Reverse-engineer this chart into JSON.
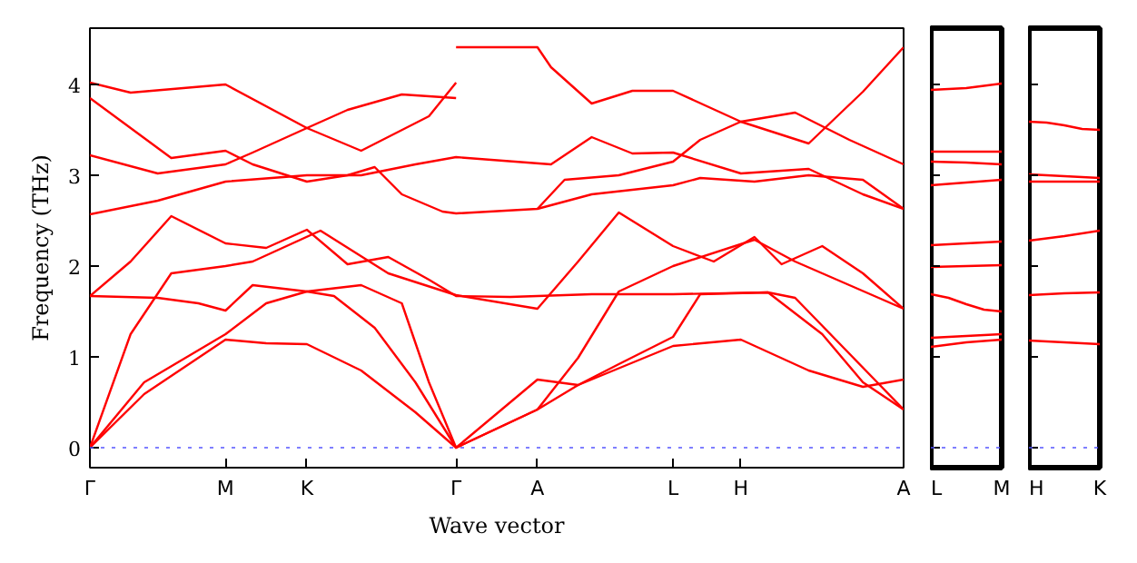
{
  "chart_data": [
    {
      "type": "line",
      "ylabel": "Frequency (THz)",
      "xlabel": "Wave vector",
      "ylim": [
        -0.22,
        4.62
      ],
      "yticks": [
        0,
        1,
        2,
        3,
        4
      ],
      "categories": [
        "Γ",
        null,
        null,
        null,
        null,
        null,
        null,
        null,
        null,
        null,
        "M",
        null,
        null,
        null,
        null,
        null,
        "K",
        null,
        null,
        null,
        null,
        null,
        null,
        null,
        null,
        null,
        null,
        "Γ",
        null,
        null,
        null,
        null,
        null,
        "A",
        null,
        null,
        null,
        null,
        null,
        null,
        null,
        null,
        null,
        "L",
        null,
        null,
        null,
        null,
        "H",
        null,
        null,
        null,
        null,
        null,
        null,
        null,
        null,
        null,
        null,
        null,
        "A"
      ],
      "ref_lines": [
        {
          "axis": "y",
          "value": 0,
          "color": "#5555ff",
          "line_style": "dotted"
        }
      ],
      "series": [
        {
          "color": "#ff0000",
          "values": [
            4.02,
            null,
            null,
            3.91,
            null,
            null,
            null,
            null,
            null,
            null,
            4.0,
            null,
            null,
            null,
            null,
            null,
            3.52,
            null,
            null,
            null,
            3.27,
            null,
            null,
            null,
            null,
            3.65,
            null,
            4.02,
            null,
            null,
            null,
            null,
            null,
            null,
            null,
            null,
            null,
            null,
            null,
            null,
            null,
            null,
            null,
            null,
            null,
            null,
            null,
            null,
            null,
            null,
            null,
            null,
            null,
            null,
            null,
            null,
            null,
            null,
            null,
            null,
            null
          ]
        },
        {
          "color": "#ff0000",
          "values": [
            3.22,
            null,
            null,
            null,
            null,
            3.02,
            null,
            null,
            null,
            null,
            3.12,
            null,
            3.25,
            null,
            null,
            null,
            3.52,
            null,
            null,
            3.72,
            null,
            null,
            null,
            3.89,
            null,
            null,
            null,
            3.85,
            null,
            null,
            null,
            null,
            null,
            null,
            null,
            null,
            null,
            null,
            null,
            null,
            null,
            null,
            null,
            null,
            null,
            null,
            null,
            null,
            null,
            null,
            null,
            null,
            null,
            null,
            null,
            null,
            null,
            null,
            null,
            null,
            null
          ]
        },
        {
          "color": "#ff0000",
          "values": [
            3.85,
            null,
            null,
            null,
            null,
            null,
            3.19,
            null,
            null,
            null,
            3.27,
            null,
            3.12,
            null,
            null,
            null,
            2.93,
            null,
            null,
            3.0,
            null,
            3.09,
            null,
            2.79,
            null,
            null,
            2.6,
            2.58,
            null,
            null,
            null,
            null,
            null,
            2.63,
            null,
            null,
            null,
            2.79,
            null,
            null,
            null,
            null,
            null,
            2.89,
            null,
            2.97,
            null,
            null,
            null,
            2.93,
            null,
            null,
            null,
            3.0,
            null,
            null,
            null,
            2.95,
            null,
            null,
            2.63
          ]
        },
        {
          "color": "#ff0000",
          "values": [
            2.57,
            null,
            null,
            null,
            null,
            2.72,
            null,
            null,
            null,
            null,
            2.93,
            null,
            null,
            null,
            null,
            null,
            3.0,
            null,
            null,
            null,
            3.0,
            null,
            null,
            null,
            3.12,
            null,
            null,
            3.2,
            null,
            null,
            null,
            null,
            null,
            null,
            3.12,
            null,
            null,
            3.42,
            null,
            null,
            3.24,
            null,
            null,
            3.25,
            null,
            null,
            null,
            null,
            3.02,
            null,
            null,
            null,
            null,
            3.07,
            null,
            null,
            null,
            2.79,
            null,
            null,
            2.63
          ]
        },
        {
          "color": "#ff0000",
          "values": [
            1.67,
            null,
            null,
            2.05,
            null,
            null,
            2.55,
            null,
            null,
            null,
            2.25,
            null,
            null,
            2.2,
            null,
            null,
            2.4,
            null,
            null,
            2.02,
            null,
            null,
            2.1,
            null,
            null,
            1.85,
            null,
            1.67,
            null,
            null,
            null,
            1.66,
            null,
            null,
            null,
            null,
            null,
            1.69,
            null,
            null,
            null,
            null,
            null,
            1.69,
            null,
            null,
            null,
            null,
            null,
            null,
            1.71,
            null,
            null,
            null,
            1.25,
            null,
            null,
            0.72,
            null,
            null,
            0.42
          ]
        },
        {
          "color": "#ff0000",
          "values": [
            0,
            null,
            null,
            1.25,
            null,
            null,
            1.92,
            null,
            null,
            null,
            2.0,
            null,
            2.05,
            null,
            null,
            null,
            null,
            2.39,
            null,
            null,
            null,
            null,
            1.92,
            null,
            null,
            null,
            null,
            1.68,
            null,
            null,
            null,
            null,
            null,
            1.53,
            null,
            null,
            2.05,
            null,
            null,
            2.59,
            null,
            null,
            null,
            2.22,
            null,
            null,
            2.05,
            null,
            null,
            2.32,
            null,
            2.02,
            null,
            null,
            2.22,
            null,
            null,
            1.92,
            null,
            null,
            1.53
          ]
        },
        {
          "color": "#ff0000",
          "values": [
            1.67,
            null,
            null,
            null,
            null,
            1.65,
            null,
            null,
            1.59,
            null,
            1.51,
            null,
            1.79,
            null,
            null,
            null,
            1.72,
            null,
            1.67,
            null,
            null,
            1.32,
            null,
            null,
            0.72,
            null,
            null,
            0,
            null,
            null,
            null,
            null,
            null,
            0.42,
            null,
            null,
            0.99,
            null,
            null,
            1.72,
            null,
            null,
            null,
            2.0,
            null,
            null,
            null,
            null,
            null,
            2.29,
            null,
            null,
            2.05,
            null,
            null,
            null,
            null,
            null,
            null,
            null,
            1.53
          ]
        },
        {
          "color": "#ff0000",
          "values": [
            0,
            null,
            null,
            null,
            0.72,
            null,
            null,
            null,
            null,
            null,
            1.25,
            null,
            null,
            1.59,
            null,
            null,
            1.72,
            null,
            null,
            null,
            1.79,
            null,
            null,
            1.59,
            null,
            0.72,
            null,
            0,
            null,
            null,
            null,
            null,
            null,
            0.75,
            null,
            null,
            0.69,
            null,
            null,
            0.92,
            null,
            null,
            null,
            1.22,
            null,
            1.69,
            null,
            null,
            null,
            null,
            1.71,
            null,
            1.65,
            null,
            null,
            null,
            null,
            null,
            null,
            null,
            0.42
          ]
        },
        {
          "color": "#ff0000",
          "values": [
            0,
            null,
            null,
            null,
            0.59,
            null,
            null,
            null,
            null,
            null,
            1.19,
            null,
            null,
            1.15,
            null,
            null,
            1.14,
            null,
            null,
            null,
            0.85,
            null,
            null,
            null,
            0.39,
            null,
            null,
            0,
            null,
            null,
            null,
            null,
            null,
            0.42,
            null,
            null,
            0.69,
            null,
            null,
            null,
            null,
            null,
            null,
            1.12,
            null,
            null,
            null,
            null,
            1.19,
            null,
            null,
            null,
            null,
            0.85,
            null,
            null,
            null,
            0.67,
            null,
            null,
            0.75
          ]
        },
        {
          "color": "#ff0000",
          "values": [
            null,
            null,
            null,
            null,
            null,
            null,
            null,
            null,
            null,
            null,
            null,
            null,
            null,
            null,
            null,
            null,
            null,
            null,
            null,
            null,
            null,
            null,
            null,
            null,
            null,
            null,
            null,
            4.41,
            null,
            null,
            null,
            null,
            null,
            4.41,
            4.19,
            null,
            null,
            3.79,
            null,
            null,
            3.93,
            null,
            null,
            3.93,
            null,
            null,
            null,
            null,
            3.59,
            null,
            null,
            null,
            null,
            3.35,
            null,
            null,
            null,
            3.92,
            null,
            null,
            4.41
          ]
        },
        {
          "color": "#ff0000",
          "values": [
            null,
            null,
            null,
            null,
            null,
            null,
            null,
            null,
            null,
            null,
            null,
            null,
            null,
            null,
            null,
            null,
            null,
            null,
            null,
            null,
            null,
            null,
            null,
            null,
            null,
            null,
            null,
            null,
            null,
            null,
            null,
            null,
            null,
            2.63,
            null,
            2.95,
            null,
            null,
            null,
            3.0,
            null,
            null,
            null,
            3.15,
            null,
            3.39,
            null,
            null,
            3.59,
            null,
            null,
            null,
            3.69,
            null,
            null,
            null,
            3.39,
            null,
            null,
            null,
            3.12
          ]
        }
      ]
    },
    {
      "type": "line",
      "ylim": [
        -0.22,
        4.62
      ],
      "yticks": [
        {
          "value": 0,
          "label": null
        },
        {
          "value": 1,
          "label": null
        },
        {
          "value": 2,
          "label": null
        },
        {
          "value": 3,
          "label": null
        },
        {
          "value": 4,
          "label": null
        }
      ],
      "tick_labels": "x",
      "categories": [
        "L",
        null,
        null,
        null,
        "M"
      ],
      "ref_lines": [
        {
          "axis": "y",
          "value": 0,
          "color": "#5555ff",
          "line_style": "dotted"
        }
      ],
      "series": [
        {
          "color": "#ff0000",
          "values": [
            3.94,
            null,
            3.96,
            null,
            4.01
          ]
        },
        {
          "color": "#ff0000",
          "values": [
            3.26,
            null,
            3.26,
            null,
            3.26
          ]
        },
        {
          "color": "#ff0000",
          "values": [
            3.15,
            null,
            3.14,
            null,
            3.12
          ]
        },
        {
          "color": "#ff0000",
          "values": [
            2.89,
            null,
            2.92,
            null,
            2.95
          ]
        },
        {
          "color": "#ff0000",
          "values": [
            2.23,
            null,
            2.25,
            null,
            2.27
          ]
        },
        {
          "color": "#ff0000",
          "values": [
            1.99,
            null,
            2.0,
            null,
            2.01
          ]
        },
        {
          "color": "#ff0000",
          "values": [
            1.69,
            1.65,
            1.58,
            1.52,
            1.5
          ]
        },
        {
          "color": "#ff0000",
          "values": [
            1.21,
            null,
            1.23,
            null,
            1.25
          ]
        },
        {
          "color": "#ff0000",
          "values": [
            1.11,
            null,
            1.16,
            null,
            1.19
          ]
        }
      ]
    },
    {
      "type": "line",
      "ylim": [
        -0.22,
        4.62
      ],
      "yticks": [
        {
          "value": 0,
          "label": null
        },
        {
          "value": 1,
          "label": null
        },
        {
          "value": 2,
          "label": null
        },
        {
          "value": 3,
          "label": null
        },
        {
          "value": 4,
          "label": null
        }
      ],
      "tick_labels": "x",
      "categories": [
        "H",
        null,
        null,
        null,
        "K"
      ],
      "ref_lines": [
        {
          "axis": "y",
          "value": 0,
          "color": "#5555ff",
          "line_style": "dotted"
        }
      ],
      "series": [
        {
          "color": "#ff0000",
          "values": [
            3.59,
            3.58,
            3.55,
            3.51,
            3.5
          ]
        },
        {
          "color": "#ff0000",
          "values": [
            3.01,
            null,
            2.99,
            null,
            2.97
          ]
        },
        {
          "color": "#ff0000",
          "values": [
            2.93,
            null,
            2.93,
            null,
            2.93
          ]
        },
        {
          "color": "#ff0000",
          "values": [
            2.28,
            null,
            2.33,
            null,
            2.39
          ]
        },
        {
          "color": "#ff0000",
          "values": [
            1.68,
            null,
            1.7,
            null,
            1.71
          ]
        },
        {
          "color": "#ff0000",
          "values": [
            1.18,
            null,
            1.16,
            null,
            1.14
          ]
        }
      ]
    }
  ]
}
